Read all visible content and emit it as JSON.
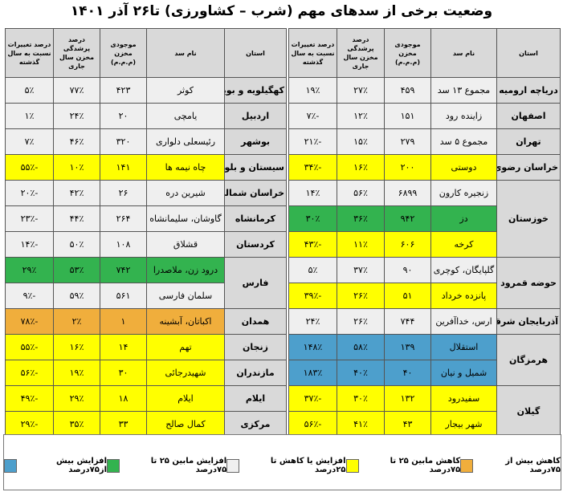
{
  "title": "وضعیت برخی از سدهای مهم (شرب – کشاورزی) تا۲۶ آذر ۱۴۰۱",
  "headers": {
    "province": "استان",
    "dam": "نام سد",
    "storage": "موجودی مخزن (م.م.م)",
    "fill": "درصد پرشدگی مخزن سال جاری",
    "change": "درصد تغییرات نسبت به سال گذشته"
  },
  "colors": {
    "orange": "#f0ae3c",
    "yellow": "#ffff00",
    "gray": "#efefef",
    "green": "#33b34f",
    "blue": "#4d9fcc",
    "header": "#d9d9d9"
  },
  "right_table": [
    {
      "province": "دریاچه ارومیه",
      "rowspan": 1,
      "dam": "مجموع ۱۳ سد",
      "storage": "۴۵۹",
      "fill": "۲۷٪",
      "change": "۱۹٪",
      "color": "gray"
    },
    {
      "province": "اصفهان",
      "rowspan": 1,
      "dam": "زاینده رود",
      "storage": "۱۵۱",
      "fill": "۱۲٪",
      "change": "-۷٪",
      "color": "gray"
    },
    {
      "province": "تهران",
      "rowspan": 1,
      "dam": "مجموع ۵ سد",
      "storage": "۲۷۹",
      "fill": "۱۵٪",
      "change": "-۲۱٪",
      "color": "gray"
    },
    {
      "province": "خراسان رضوی",
      "rowspan": 1,
      "dam": "دوستی",
      "storage": "۲۰۰",
      "fill": "۱۶٪",
      "change": "-۳۴٪",
      "color": "yellow"
    },
    {
      "province": "خوزستان",
      "rowspan": 3,
      "dam": "زنجیره کارون",
      "storage": "۶۸۹۹",
      "fill": "۵۶٪",
      "change": "۱۴٪",
      "color": "gray"
    },
    {
      "province": null,
      "dam": "دز",
      "storage": "۹۴۲",
      "fill": "۳۶٪",
      "change": "۳۰٪",
      "color": "green"
    },
    {
      "province": null,
      "dam": "کرخه",
      "storage": "۶۰۶",
      "fill": "۱۱٪",
      "change": "-۴۳٪",
      "color": "yellow"
    },
    {
      "province": "حوضه قمرود",
      "rowspan": 2,
      "dam": "گلپایگان، کوچری",
      "storage": "۹۰",
      "fill": "۳۷٪",
      "change": "۵٪",
      "color": "gray"
    },
    {
      "province": null,
      "dam": "پانزده خرداد",
      "storage": "۵۱",
      "fill": "۲۶٪",
      "change": "-۳۹٪",
      "color": "yellow"
    },
    {
      "province": "آذربایجان شرقی",
      "rowspan": 1,
      "dam": "ارس، خداآفرین",
      "storage": "۷۴۴",
      "fill": "۲۶٪",
      "change": "۲۴٪",
      "color": "gray"
    },
    {
      "province": "هرمزگان",
      "rowspan": 2,
      "dam": "استقلال",
      "storage": "۱۳۹",
      "fill": "۵۸٪",
      "change": "۱۴۸٪",
      "color": "blue"
    },
    {
      "province": null,
      "dam": "شمیل و نیان",
      "storage": "۴۰",
      "fill": "۴۰٪",
      "change": "۱۸۳٪",
      "color": "blue"
    },
    {
      "province": "گیلان",
      "rowspan": 2,
      "dam": "سفیدرود",
      "storage": "۱۳۲",
      "fill": "۳۰٪",
      "change": "-۳۷٪",
      "color": "yellow"
    },
    {
      "province": null,
      "dam": "شهر بیجار",
      "storage": "۴۳",
      "fill": "۴۱٪",
      "change": "-۵۶٪",
      "color": "yellow"
    }
  ],
  "left_table": [
    {
      "province": "کهگیلویه و بویراحمد",
      "rowspan": 1,
      "dam": "کوثر",
      "storage": "۴۲۳",
      "fill": "۷۷٪",
      "change": "۵٪",
      "color": "gray"
    },
    {
      "province": "اردبیل",
      "rowspan": 1,
      "dam": "یامچی",
      "storage": "۲۰",
      "fill": "۲۴٪",
      "change": "۱٪",
      "color": "gray"
    },
    {
      "province": "بوشهر",
      "rowspan": 1,
      "dam": "رئیسعلی دلواری",
      "storage": "۳۲۰",
      "fill": "۴۶٪",
      "change": "۷٪",
      "color": "gray"
    },
    {
      "province": "سیستان و بلوچستان",
      "rowspan": 1,
      "dam": "چاه نیمه ها",
      "storage": "۱۴۱",
      "fill": "۱۰٪",
      "change": "-۵۵٪",
      "color": "yellow"
    },
    {
      "province": "خراسان شمالی",
      "rowspan": 1,
      "dam": "شیرین دره",
      "storage": "۲۶",
      "fill": "۴۲٪",
      "change": "-۲۰٪",
      "color": "gray"
    },
    {
      "province": "کرمانشاه",
      "rowspan": 1,
      "dam": "گاوشان، سلیمانشاه",
      "storage": "۲۶۴",
      "fill": "۴۴٪",
      "change": "-۲۳٪",
      "color": "gray"
    },
    {
      "province": "کردستان",
      "rowspan": 1,
      "dam": "قشلاق",
      "storage": "۱۰۸",
      "fill": "۵۰٪",
      "change": "-۱۴٪",
      "color": "gray"
    },
    {
      "province": "فارس",
      "rowspan": 2,
      "dam": "درود زن، ملاصدرا",
      "storage": "۷۴۲",
      "fill": "۵۳٪",
      "change": "۲۹٪",
      "color": "green"
    },
    {
      "province": null,
      "dam": "سلمان فارسی",
      "storage": "۵۶۱",
      "fill": "۵۹٪",
      "change": "-۹٪",
      "color": "gray"
    },
    {
      "province": "همدان",
      "rowspan": 1,
      "dam": "اکباتان، آبشینه",
      "storage": "۱",
      "fill": "۲٪",
      "change": "-۷۸٪",
      "color": "orange"
    },
    {
      "province": "زنجان",
      "rowspan": 1,
      "dam": "تهم",
      "storage": "۱۴",
      "fill": "۱۶٪",
      "change": "-۵۵٪",
      "color": "yellow"
    },
    {
      "province": "مازندران",
      "rowspan": 1,
      "dam": "شهیدرجائی",
      "storage": "۳۰",
      "fill": "۱۹٪",
      "change": "-۵۶٪",
      "color": "yellow"
    },
    {
      "province": "ایلام",
      "rowspan": 1,
      "dam": "ایلام",
      "storage": "۱۸",
      "fill": "۲۹٪",
      "change": "-۴۹٪",
      "color": "yellow"
    },
    {
      "province": "مرکزی",
      "rowspan": 1,
      "dam": "کمال صالح",
      "storage": "۳۳",
      "fill": "۳۵٪",
      "change": "-۲۹٪",
      "color": "yellow"
    }
  ],
  "legend": [
    {
      "label": "افزایش بیش از۷۵درصد",
      "color": "blue"
    },
    {
      "label": "افزایش مابین ۲۵ تا ۷۵درصد",
      "color": "green"
    },
    {
      "label": "افزایش یا کاهش تا ۲۵درصد",
      "color": "gray"
    },
    {
      "label": "کاهش مابین ۲۵ تا ۷۵درصد",
      "color": "yellow"
    },
    {
      "label": "کاهش بیش از ۷۵درصد",
      "color": "orange"
    }
  ]
}
